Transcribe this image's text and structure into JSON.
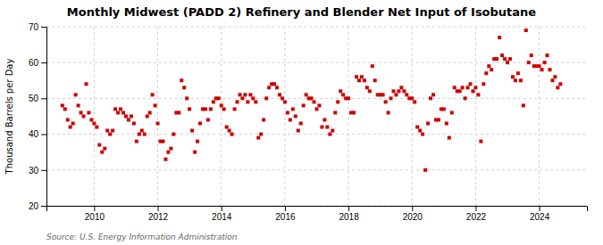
{
  "chart_data": {
    "type": "scatter",
    "title": "Monthly Midwest (PADD 2) Refinery and Blender Net Input of Isobutane",
    "ylabel": "Thousand Barrels per Day",
    "source": "Source: U.S. Energy Information Administration",
    "color": "#cc0000",
    "marker": "square",
    "grid": true,
    "xlim": [
      2008.5,
      2025.5
    ],
    "xticks": [
      2010,
      2012,
      2014,
      2016,
      2018,
      2020,
      2022,
      2024
    ],
    "ylim": [
      20,
      70
    ],
    "yticks": [
      20,
      30,
      40,
      50,
      60,
      70
    ],
    "x": [
      2009.0,
      2009.083,
      2009.167,
      2009.25,
      2009.333,
      2009.417,
      2009.5,
      2009.583,
      2009.667,
      2009.75,
      2009.833,
      2009.917,
      2010.0,
      2010.083,
      2010.167,
      2010.25,
      2010.333,
      2010.417,
      2010.5,
      2010.583,
      2010.667,
      2010.75,
      2010.833,
      2010.917,
      2011.0,
      2011.083,
      2011.167,
      2011.25,
      2011.333,
      2011.417,
      2011.5,
      2011.583,
      2011.667,
      2011.75,
      2011.833,
      2011.917,
      2012.0,
      2012.083,
      2012.167,
      2012.25,
      2012.333,
      2012.417,
      2012.5,
      2012.583,
      2012.667,
      2012.75,
      2012.833,
      2012.917,
      2013.0,
      2013.083,
      2013.167,
      2013.25,
      2013.333,
      2013.417,
      2013.5,
      2013.583,
      2013.667,
      2013.75,
      2013.833,
      2013.917,
      2014.0,
      2014.083,
      2014.167,
      2014.25,
      2014.333,
      2014.417,
      2014.5,
      2014.583,
      2014.667,
      2014.75,
      2014.833,
      2014.917,
      2015.0,
      2015.083,
      2015.167,
      2015.25,
      2015.333,
      2015.417,
      2015.5,
      2015.583,
      2015.667,
      2015.75,
      2015.833,
      2015.917,
      2016.0,
      2016.083,
      2016.167,
      2016.25,
      2016.333,
      2016.417,
      2016.5,
      2016.583,
      2016.667,
      2016.75,
      2016.833,
      2016.917,
      2017.0,
      2017.083,
      2017.167,
      2017.25,
      2017.333,
      2017.417,
      2017.5,
      2017.583,
      2017.667,
      2017.75,
      2017.833,
      2017.917,
      2018.0,
      2018.083,
      2018.167,
      2018.25,
      2018.333,
      2018.417,
      2018.5,
      2018.583,
      2018.667,
      2018.75,
      2018.833,
      2018.917,
      2019.0,
      2019.083,
      2019.167,
      2019.25,
      2019.333,
      2019.417,
      2019.5,
      2019.583,
      2019.667,
      2019.75,
      2019.833,
      2019.917,
      2020.0,
      2020.083,
      2020.167,
      2020.25,
      2020.333,
      2020.417,
      2020.5,
      2020.583,
      2020.667,
      2020.75,
      2020.833,
      2020.917,
      2021.0,
      2021.083,
      2021.167,
      2021.25,
      2021.333,
      2021.417,
      2021.5,
      2021.583,
      2021.667,
      2021.75,
      2021.833,
      2021.917,
      2022.0,
      2022.083,
      2022.167,
      2022.25,
      2022.333,
      2022.417,
      2022.5,
      2022.583,
      2022.667,
      2022.75,
      2022.833,
      2022.917,
      2023.0,
      2023.083,
      2023.167,
      2023.25,
      2023.333,
      2023.417,
      2023.5,
      2023.583,
      2023.667,
      2023.75,
      2023.833,
      2023.917,
      2024.0,
      2024.083,
      2024.167,
      2024.25,
      2024.333,
      2024.417,
      2024.5,
      2024.583,
      2024.667
    ],
    "values": [
      48,
      47,
      44,
      42,
      43,
      51,
      48,
      46,
      45,
      54,
      46,
      44,
      43,
      42,
      37,
      35,
      36,
      41,
      40,
      41,
      47,
      46,
      47,
      46,
      45,
      44,
      45,
      43,
      38,
      40,
      41,
      40,
      45,
      46,
      51,
      48,
      43,
      38,
      38,
      33,
      35,
      36,
      40,
      46,
      46,
      55,
      53,
      50,
      47,
      41,
      35,
      38,
      43,
      47,
      47,
      44,
      47,
      49,
      50,
      50,
      48,
      47,
      42,
      41,
      40,
      47,
      49,
      51,
      50,
      51,
      49,
      51,
      50,
      49,
      39,
      40,
      44,
      50,
      53,
      54,
      54,
      53,
      51,
      50,
      49,
      46,
      44,
      47,
      45,
      41,
      43,
      48,
      51,
      50,
      50,
      49,
      47,
      48,
      42,
      44,
      42,
      40,
      41,
      46,
      49,
      52,
      51,
      50,
      50,
      46,
      46,
      56,
      55,
      56,
      55,
      53,
      52,
      59,
      55,
      51,
      51,
      51,
      49,
      46,
      50,
      52,
      51,
      52,
      53,
      52,
      51,
      50,
      50,
      49,
      42,
      41,
      40,
      30,
      43,
      50,
      51,
      44,
      44,
      47,
      47,
      43,
      39,
      46,
      53,
      52,
      52,
      53,
      50,
      53,
      54,
      52,
      53,
      51,
      38,
      54,
      57,
      59,
      58,
      61,
      61,
      67,
      62,
      61,
      60,
      61,
      56,
      55,
      57,
      55,
      48,
      69,
      60,
      62,
      59,
      59,
      59,
      58,
      60,
      62,
      58,
      55,
      56,
      53,
      54
    ]
  }
}
